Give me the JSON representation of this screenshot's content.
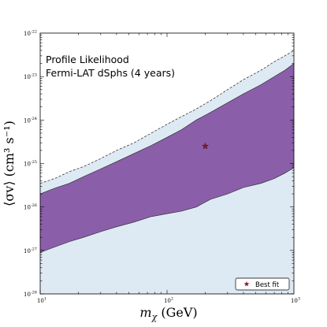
{
  "chart_data": {
    "type": "area",
    "title": "",
    "annotation_lines": [
      "Profile Likelihood",
      "Fermi-LAT dSphs (4 years)"
    ],
    "xlabel_symbol": "m",
    "xlabel_subscript": "χ",
    "xlabel_unit": " (GeV)",
    "ylabel": "⟨σv⟩ (cm³ s⁻¹)",
    "x_scale": "log",
    "y_scale": "log",
    "xlim": [
      10,
      1000
    ],
    "ylim": [
      1e-28,
      1e-22
    ],
    "x_ticks": [
      {
        "base": "10",
        "exp": "1",
        "value": 10
      },
      {
        "base": "10",
        "exp": "2",
        "value": 100
      },
      {
        "base": "10",
        "exp": "3",
        "value": 1000
      }
    ],
    "y_ticks": [
      {
        "base": "10",
        "exp": "-22",
        "value": 1e-22
      },
      {
        "base": "10",
        "exp": "-23",
        "value": 1e-23
      },
      {
        "base": "10",
        "exp": "-24",
        "value": 1e-24
      },
      {
        "base": "10",
        "exp": "-25",
        "value": 1e-25
      },
      {
        "base": "10",
        "exp": "-26",
        "value": 1e-26
      },
      {
        "base": "10",
        "exp": "-27",
        "value": 1e-27
      },
      {
        "base": "10",
        "exp": "-28",
        "value": 1e-28
      }
    ],
    "regions": [
      {
        "level": "outer",
        "color": "#dde9f3",
        "upper": [
          [
            10,
            3.5e-26
          ],
          [
            13,
            4.5e-26
          ],
          [
            17,
            6.5e-26
          ],
          [
            22,
            8.5e-26
          ],
          [
            30,
            1.3e-25
          ],
          [
            40,
            2e-25
          ],
          [
            55,
            3e-25
          ],
          [
            75,
            5e-25
          ],
          [
            100,
            8e-25
          ],
          [
            130,
            1.2e-24
          ],
          [
            170,
            1.8e-24
          ],
          [
            220,
            2.8e-24
          ],
          [
            300,
            5e-24
          ],
          [
            400,
            8.5e-24
          ],
          [
            550,
            1.4e-23
          ],
          [
            700,
            2.2e-23
          ],
          [
            850,
            3e-23
          ],
          [
            1000,
            4e-23
          ]
        ],
        "lower": [
          [
            10,
            1e-28
          ],
          [
            1000,
            1e-28
          ]
        ]
      },
      {
        "level": "inner",
        "color": "#8b5ea9",
        "upper": [
          [
            10,
            2e-26
          ],
          [
            13,
            2.7e-26
          ],
          [
            17,
            3.5e-26
          ],
          [
            22,
            5e-26
          ],
          [
            30,
            7.5e-26
          ],
          [
            40,
            1.1e-25
          ],
          [
            55,
            1.7e-25
          ],
          [
            75,
            2.6e-25
          ],
          [
            100,
            4e-25
          ],
          [
            130,
            6e-25
          ],
          [
            170,
            1e-24
          ],
          [
            220,
            1.5e-24
          ],
          [
            300,
            2.5e-24
          ],
          [
            400,
            4e-24
          ],
          [
            550,
            6.5e-24
          ],
          [
            700,
            1e-23
          ],
          [
            850,
            1.4e-23
          ],
          [
            1000,
            2e-23
          ]
        ],
        "lower": [
          [
            10,
            9e-28
          ],
          [
            13,
            1.2e-27
          ],
          [
            17,
            1.6e-27
          ],
          [
            22,
            2e-27
          ],
          [
            30,
            2.7e-27
          ],
          [
            40,
            3.5e-27
          ],
          [
            55,
            4.5e-27
          ],
          [
            75,
            6e-27
          ],
          [
            100,
            7e-27
          ],
          [
            130,
            8e-27
          ],
          [
            170,
            1e-26
          ],
          [
            220,
            1.5e-26
          ],
          [
            300,
            2e-26
          ],
          [
            400,
            2.8e-26
          ],
          [
            550,
            3.5e-26
          ],
          [
            700,
            4.5e-26
          ],
          [
            850,
            6e-26
          ],
          [
            1000,
            8e-26
          ]
        ]
      }
    ],
    "best_fit": {
      "x": 200,
      "y": 2.5e-25,
      "marker": "star",
      "color": "#8b1a2b"
    },
    "legend": {
      "label": "Best fit",
      "placement": "lower-right"
    },
    "colors": {
      "outer_band": "#dde9f3",
      "inner_band": "#8b5ea9",
      "best_fit": "#8b1a2b"
    }
  }
}
